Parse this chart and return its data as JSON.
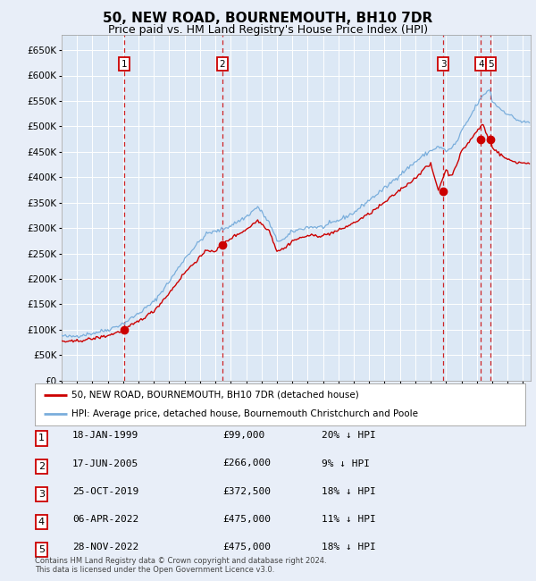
{
  "title": "50, NEW ROAD, BOURNEMOUTH, BH10 7DR",
  "subtitle": "Price paid vs. HM Land Registry's House Price Index (HPI)",
  "title_fontsize": 11,
  "subtitle_fontsize": 9,
  "background_color": "#e8eef8",
  "plot_bg_color": "#dce8f5",
  "grid_color": "#ffffff",
  "ylim": [
    0,
    680000
  ],
  "yticks": [
    0,
    50000,
    100000,
    150000,
    200000,
    250000,
    300000,
    350000,
    400000,
    450000,
    500000,
    550000,
    600000,
    650000
  ],
  "xlim_start": 1995.0,
  "xlim_end": 2025.5,
  "sales": [
    {
      "num": 1,
      "year": 1999.05,
      "price": 99000,
      "label": "1",
      "date": "18-JAN-1999",
      "pct": "20% ↓ HPI"
    },
    {
      "num": 2,
      "year": 2005.45,
      "price": 266000,
      "label": "2",
      "date": "17-JUN-2005",
      "pct": "9% ↓ HPI"
    },
    {
      "num": 3,
      "year": 2019.82,
      "price": 372500,
      "label": "3",
      "date": "25-OCT-2019",
      "pct": "18% ↓ HPI"
    },
    {
      "num": 4,
      "year": 2022.27,
      "price": 475000,
      "label": "4",
      "date": "06-APR-2022",
      "pct": "11% ↓ HPI"
    },
    {
      "num": 5,
      "year": 2022.91,
      "price": 475000,
      "label": "5",
      "date": "28-NOV-2022",
      "pct": "18% ↓ HPI"
    }
  ],
  "sale_color": "#cc0000",
  "vline_color": "#cc0000",
  "hpi_line_color": "#7aaedc",
  "price_line_color": "#cc0000",
  "legend_entries": [
    "50, NEW ROAD, BOURNEMOUTH, BH10 7DR (detached house)",
    "HPI: Average price, detached house, Bournemouth Christchurch and Poole"
  ],
  "footer": "Contains HM Land Registry data © Crown copyright and database right 2024.\nThis data is licensed under the Open Government Licence v3.0.",
  "table_rows": [
    [
      "1",
      "18-JAN-1999",
      "£99,000",
      "20% ↓ HPI"
    ],
    [
      "2",
      "17-JUN-2005",
      "£266,000",
      "9% ↓ HPI"
    ],
    [
      "3",
      "25-OCT-2019",
      "£372,500",
      "18% ↓ HPI"
    ],
    [
      "4",
      "06-APR-2022",
      "£475,000",
      "11% ↓ HPI"
    ],
    [
      "5",
      "28-NOV-2022",
      "£475,000",
      "18% ↓ HPI"
    ]
  ]
}
